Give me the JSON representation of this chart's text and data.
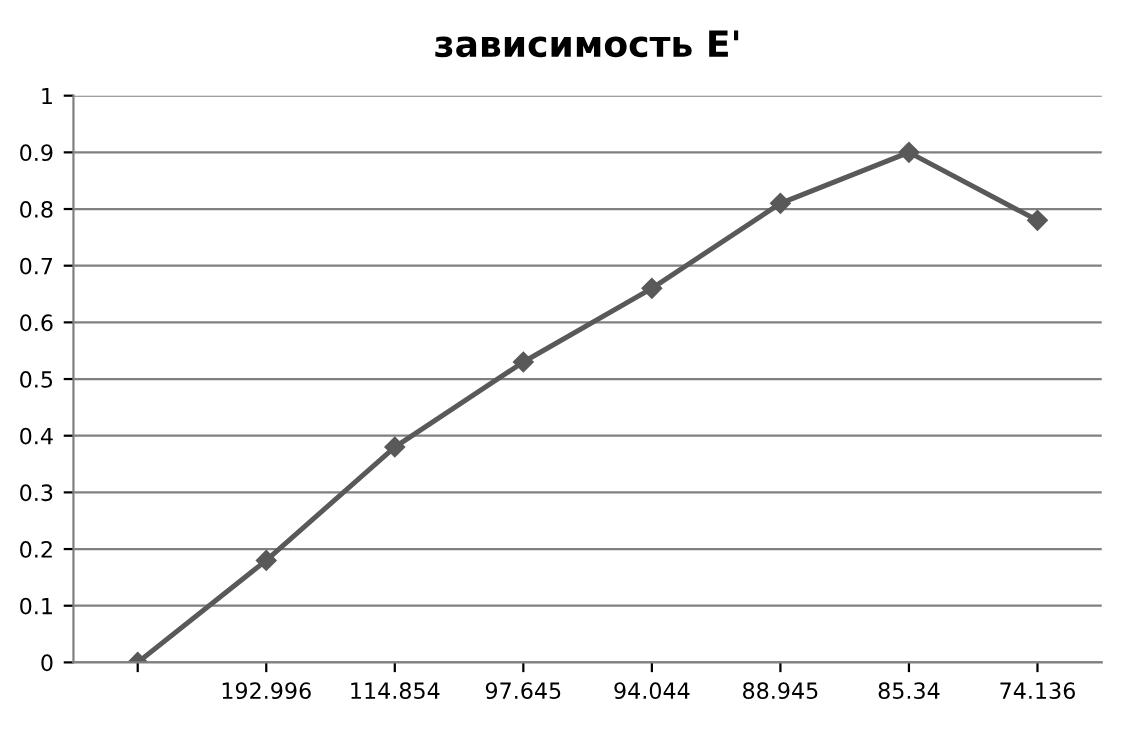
{
  "chart_data": {
    "type": "line",
    "title": "зависимость E'",
    "categories": [
      null,
      "192.996",
      "114.854",
      "97.645",
      "94.044",
      "88.945",
      "85.34",
      "74.136"
    ],
    "series": [
      {
        "color": "#595959",
        "values": [
          0,
          0.18,
          0.38,
          0.53,
          0.66,
          0.81,
          0.9,
          0.78
        ]
      }
    ],
    "ylim": [
      0,
      1
    ],
    "yticks": [
      0,
      0.1,
      0.2,
      0.3,
      0.4,
      0.5,
      0.6,
      0.7,
      0.8,
      0.9,
      1
    ],
    "grid": "y",
    "legend": false,
    "marker": "diamond",
    "line_style": "solid"
  }
}
